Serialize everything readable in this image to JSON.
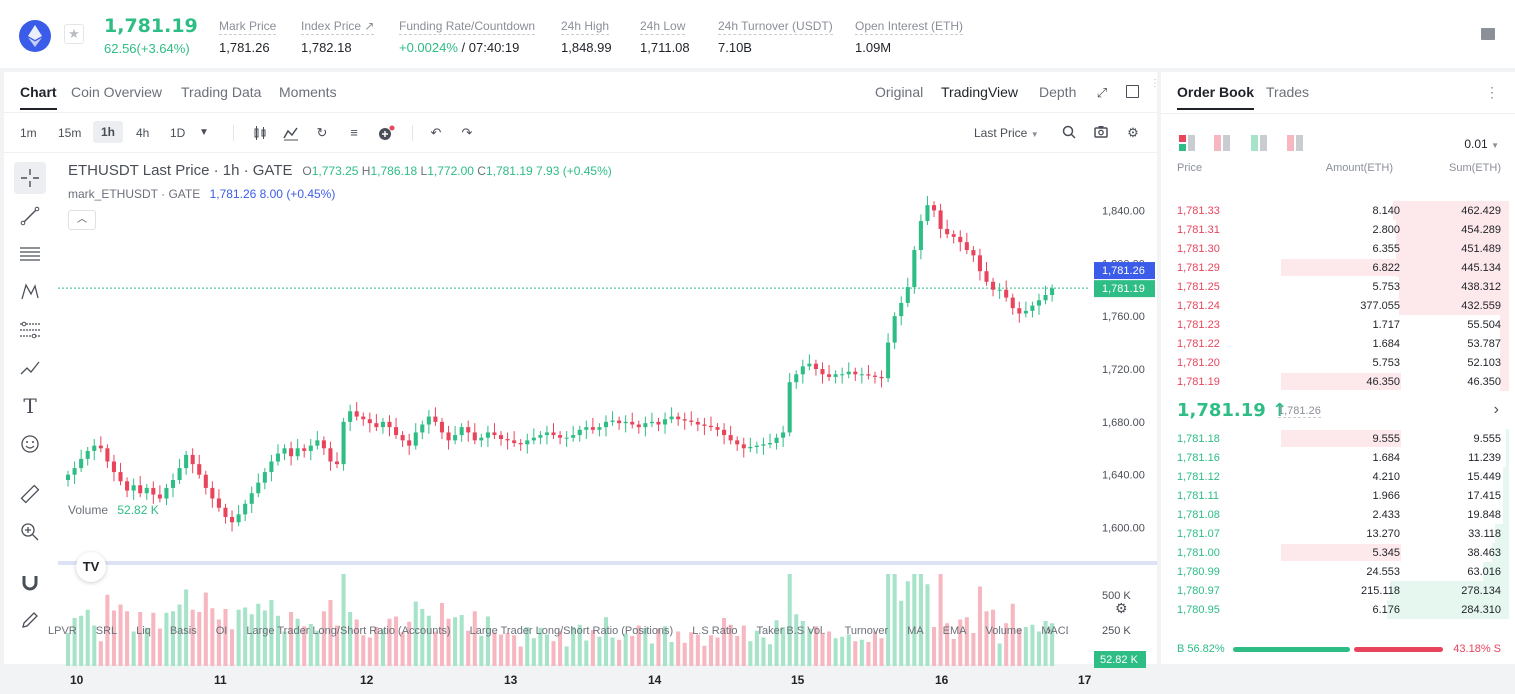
{
  "header": {
    "last_price": "1,781.19",
    "change": "62.56(+3.64%)",
    "stats": [
      {
        "label": "Mark Price",
        "value": "1,781.26"
      },
      {
        "label": "Index Price ↗",
        "value": "1,782.18"
      },
      {
        "label": "Funding Rate/Countdown",
        "value_green": "+0.0024%",
        "value": "/ 07:40:19"
      },
      {
        "label": "24h High",
        "value": "1,848.99"
      },
      {
        "label": "24h Low",
        "value": "1,711.08"
      },
      {
        "label": "24h Turnover (USDT)",
        "value": "7.10B"
      },
      {
        "label": "Open Interest (ETH)",
        "value": "1.09M"
      }
    ]
  },
  "chart_panel": {
    "tabs": [
      "Chart",
      "Coin Overview",
      "Trading Data",
      "Moments"
    ],
    "view_tabs": [
      "Original",
      "TradingView",
      "Depth"
    ],
    "intervals": [
      "1m",
      "15m",
      "1h",
      "4h",
      "1D"
    ],
    "price_type": "Last Price",
    "legend": {
      "symbol": "ETHUSDT Last Price · 1h · GATE",
      "o": "1,773.25",
      "h": "1,786.18",
      "l": "1,772.00",
      "c": "1,781.19",
      "chg": "7.93 (+0.45%)"
    },
    "mark_legend": {
      "name": "mark_ETHUSDT · GATE",
      "value": "1,781.26  8.00 (+0.45%)"
    },
    "volume_label": "Volume",
    "volume_value": "52.82 K",
    "price_axis": [
      "1,840.00",
      "1,800.00",
      "1,760.00",
      "1,720.00",
      "1,680.00",
      "1,640.00",
      "1,600.00"
    ],
    "mark_tag": "1,781.26",
    "last_tag": "1,781.19",
    "vol_axis": [
      "500 K",
      "250 K"
    ],
    "vol_tag": "52.82 K",
    "date_axis": [
      "10",
      "11",
      "12",
      "13",
      "14",
      "15",
      "16",
      "17"
    ],
    "indicators": [
      "LPVR",
      "SRL",
      "Liq",
      "Basis",
      "OI",
      "Large Trader Long/Short Ratio (Accounts)",
      "Large Trader Long/Short Ratio (Positions)",
      "L.S Ratio",
      "Taker B.S Vol.",
      "Turnover",
      "MA",
      "EMA",
      "Volume",
      "MACD"
    ]
  },
  "chart_data": {
    "type": "candlestick",
    "title": "ETHUSDT Last Price · 1h · GATE",
    "xlabel": "",
    "ylabel": "",
    "x_ticks": [
      "10",
      "11",
      "12",
      "13",
      "14",
      "15",
      "16",
      "17"
    ],
    "ylim": [
      1580,
      1860
    ],
    "last_price": 1781.19,
    "mark_price": 1781.26,
    "closes": [
      1640,
      1645,
      1652,
      1658,
      1662,
      1660,
      1650,
      1642,
      1635,
      1628,
      1632,
      1626,
      1630,
      1625,
      1622,
      1630,
      1636,
      1645,
      1655,
      1648,
      1640,
      1630,
      1622,
      1615,
      1608,
      1604,
      1610,
      1618,
      1626,
      1634,
      1642,
      1650,
      1656,
      1660,
      1654,
      1660,
      1658,
      1662,
      1666,
      1660,
      1650,
      1648,
      1680,
      1688,
      1684,
      1682,
      1679,
      1676,
      1680,
      1676,
      1670,
      1666,
      1662,
      1672,
      1678,
      1684,
      1680,
      1672,
      1666,
      1670,
      1676,
      1672,
      1666,
      1668,
      1672,
      1670,
      1667,
      1666,
      1664,
      1663,
      1666,
      1668,
      1670,
      1672,
      1670,
      1668,
      1668,
      1670,
      1674,
      1676,
      1674,
      1676,
      1680,
      1681,
      1679,
      1680,
      1678,
      1676,
      1679,
      1680,
      1678,
      1682,
      1684,
      1682,
      1681,
      1680,
      1678,
      1677,
      1676,
      1674,
      1670,
      1666,
      1663,
      1660,
      1661,
      1662,
      1663,
      1664,
      1668,
      1672,
      1710,
      1716,
      1722,
      1724,
      1720,
      1716,
      1714,
      1716,
      1716,
      1718,
      1716,
      1716,
      1715,
      1714,
      1713,
      1740,
      1760,
      1770,
      1782,
      1810,
      1832,
      1844,
      1840,
      1826,
      1822,
      1820,
      1816,
      1810,
      1806,
      1794,
      1786,
      1780,
      1780,
      1774,
      1766,
      1762,
      1764,
      1768,
      1772,
      1776,
      1781
    ],
    "volume_note": "volume bars in K, axis ticks 250 K / 500 K"
  },
  "order_book": {
    "tabs": [
      "Order Book",
      "Trades"
    ],
    "precision": "0.01",
    "columns": [
      "Price",
      "Amount(ETH)",
      "Sum(ETH)"
    ],
    "asks": [
      {
        "price": "1,781.33",
        "amount": "8.140",
        "sum": "462.429",
        "depth": 0.4,
        "big": 0
      },
      {
        "price": "1,781.31",
        "amount": "2.800",
        "sum": "454.289",
        "depth": 0.39,
        "big": 0
      },
      {
        "price": "1,781.30",
        "amount": "6.355",
        "sum": "451.489",
        "depth": 0.39,
        "big": 0
      },
      {
        "price": "1,781.29",
        "amount": "6.822",
        "sum": "445.134",
        "depth": 0.39,
        "big": 1
      },
      {
        "price": "1,781.25",
        "amount": "5.753",
        "sum": "438.312",
        "depth": 0.38,
        "big": 0
      },
      {
        "price": "1,781.24",
        "amount": "377.055",
        "sum": "432.559",
        "depth": 0.38,
        "big": 0
      },
      {
        "price": "1,781.23",
        "amount": "1.717",
        "sum": "55.504",
        "depth": 0.03,
        "big": 0
      },
      {
        "price": "1,781.22",
        "amount": "1.684",
        "sum": "53.787",
        "depth": 0.03,
        "big": 0
      },
      {
        "price": "1,781.20",
        "amount": "5.753",
        "sum": "52.103",
        "depth": 0.03,
        "big": 0
      },
      {
        "price": "1,781.19",
        "amount": "46.350",
        "sum": "46.350",
        "depth": 0.03,
        "big": 1
      }
    ],
    "mid_price": "1,781.19 ↑",
    "mid_mark": "1,781.26",
    "bids": [
      {
        "price": "1,781.18",
        "amount": "9.555",
        "sum": "9.555",
        "depth": 0.01,
        "big": 1
      },
      {
        "price": "1,781.16",
        "amount": "1.684",
        "sum": "11.239",
        "depth": 0.01,
        "big": 0
      },
      {
        "price": "1,781.12",
        "amount": "4.210",
        "sum": "15.449",
        "depth": 0.02,
        "big": 0
      },
      {
        "price": "1,781.11",
        "amount": "1.966",
        "sum": "17.415",
        "depth": 0.02,
        "big": 0
      },
      {
        "price": "1,781.08",
        "amount": "2.433",
        "sum": "19.848",
        "depth": 0.02,
        "big": 0
      },
      {
        "price": "1,781.07",
        "amount": "13.270",
        "sum": "33.118",
        "depth": 0.05,
        "big": 0
      },
      {
        "price": "1,781.00",
        "amount": "5.345",
        "sum": "38.463",
        "depth": 0.06,
        "big": 1
      },
      {
        "price": "1,780.99",
        "amount": "24.553",
        "sum": "63.016",
        "depth": 0.09,
        "big": 0
      },
      {
        "price": "1,780.97",
        "amount": "215.118",
        "sum": "278.134",
        "depth": 0.41,
        "big": 0
      },
      {
        "price": "1,780.95",
        "amount": "6.176",
        "sum": "284.310",
        "depth": 0.42,
        "big": 0
      }
    ],
    "buy_pct": "B 56.82%",
    "sell_pct": "43.18% S",
    "buy_ratio": 0.5682
  },
  "colors": {
    "up": "#2ebd85",
    "down": "#e8455d",
    "accent": "#3b5ce8"
  }
}
